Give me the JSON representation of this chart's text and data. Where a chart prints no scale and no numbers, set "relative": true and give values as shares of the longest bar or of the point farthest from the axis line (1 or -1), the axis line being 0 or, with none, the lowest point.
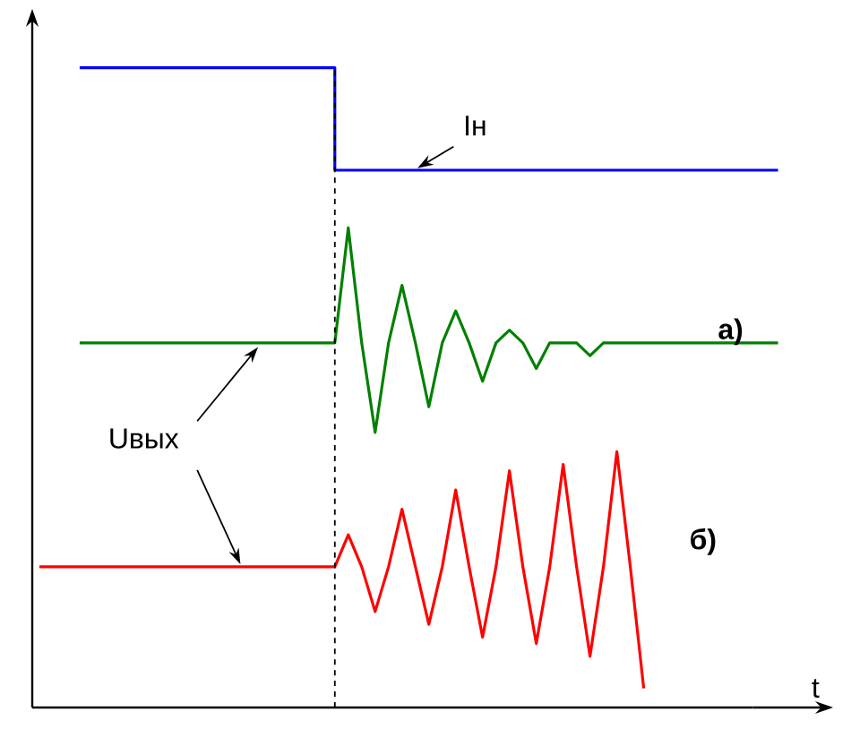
{
  "chart_data": {
    "type": "line",
    "relative": true,
    "xlabel": "t",
    "marker": "none",
    "line_style": "solid",
    "categories": [
      null,
      null,
      null,
      null,
      null,
      null,
      null,
      null,
      null,
      null,
      null,
      null,
      null,
      null,
      null,
      null,
      null,
      null,
      null,
      null,
      null,
      null,
      null,
      null,
      null,
      null,
      null,
      null,
      null,
      null,
      null,
      null,
      null,
      null,
      null,
      null,
      null,
      null,
      null,
      null,
      null,
      null,
      null,
      null,
      null,
      null,
      null,
      null,
      null,
      null,
      null,
      null,
      null,
      null,
      null,
      null
    ],
    "series": [
      {
        "name": "Iн",
        "type": "step",
        "color": "#0000ff",
        "values": [
          null,
          null,
          null,
          1.0,
          1.0,
          1.0,
          1.0,
          1.0,
          1.0,
          1.0,
          1.0,
          1.0,
          1.0,
          1.0,
          1.0,
          1.0,
          1.0,
          1.0,
          1.0,
          1.0,
          1.0,
          1.0,
          0.84,
          0.84,
          0.84,
          0.84,
          0.84,
          0.84,
          0.84,
          0.84,
          0.84,
          0.84,
          0.84,
          0.84,
          0.84,
          0.84,
          0.84,
          0.84,
          0.84,
          0.84,
          0.84,
          0.84,
          0.84,
          0.84,
          0.84,
          0.84,
          0.84,
          0.84,
          0.84,
          0.84,
          0.84,
          0.84,
          0.84,
          0.84,
          0.84,
          0.84
        ]
      },
      {
        "name": "а)",
        "color": "#008000",
        "values": [
          null,
          null,
          null,
          0.57,
          0.57,
          0.57,
          0.57,
          0.57,
          0.57,
          0.57,
          0.57,
          0.57,
          0.57,
          0.57,
          0.57,
          0.57,
          0.57,
          0.57,
          0.57,
          0.57,
          0.57,
          0.57,
          0.57,
          0.75,
          0.57,
          0.43,
          0.57,
          0.66,
          0.57,
          0.47,
          0.57,
          0.62,
          0.57,
          0.51,
          0.57,
          0.59,
          0.57,
          0.53,
          0.57,
          0.57,
          0.57,
          0.55,
          0.57,
          0.57,
          0.57,
          0.57,
          0.57,
          0.57,
          0.57,
          0.57,
          0.57,
          0.57,
          0.57,
          0.57,
          0.57,
          0.57
        ]
      },
      {
        "name": "б)",
        "color": "#ff0000",
        "values": [
          0.22,
          0.22,
          0.22,
          0.22,
          0.22,
          0.22,
          0.22,
          0.22,
          0.22,
          0.22,
          0.22,
          0.22,
          0.22,
          0.22,
          0.22,
          0.22,
          0.22,
          0.22,
          0.22,
          0.22,
          0.22,
          0.22,
          0.22,
          0.27,
          0.22,
          0.15,
          0.22,
          0.31,
          0.22,
          0.13,
          0.22,
          0.34,
          0.22,
          0.11,
          0.22,
          0.37,
          0.22,
          0.1,
          0.22,
          0.38,
          0.22,
          0.08,
          0.22,
          0.4,
          0.22,
          0.03,
          null,
          null,
          null,
          null,
          null,
          null,
          null,
          null,
          null,
          null
        ]
      }
    ],
    "annotations": [
      "Uвых"
    ]
  }
}
